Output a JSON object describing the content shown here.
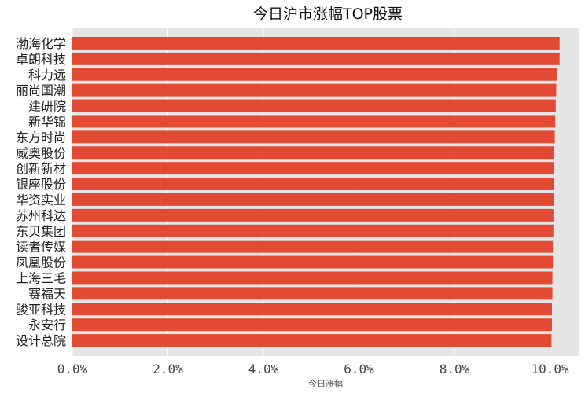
{
  "chart_data": {
    "type": "bar",
    "orientation": "horizontal",
    "title": "今日沪市涨幅TOP股票",
    "xlabel": "今日涨幅",
    "ylabel": "",
    "xlim": [
      0,
      10.6
    ],
    "x_ticks": [
      0,
      2,
      4,
      6,
      8,
      10
    ],
    "x_tick_labels": [
      "0.0%",
      "2.0%",
      "4.0%",
      "6.0%",
      "8.0%",
      "10.0%"
    ],
    "categories": [
      "渤海化学",
      "卓朗科技",
      "科力远",
      "丽尚国潮",
      "建研院",
      "新华锦",
      "东方时尚",
      "威奥股份",
      "创新新材",
      "银座股份",
      "华资实业",
      "苏州科达",
      "东贝集团",
      "读者传媒",
      "凤凰股份",
      "上海三毛",
      "赛福天",
      "骏亚科技",
      "永安行",
      "设计总院"
    ],
    "values": [
      10.2,
      10.2,
      10.14,
      10.13,
      10.12,
      10.11,
      10.1,
      10.09,
      10.09,
      10.08,
      10.08,
      10.07,
      10.07,
      10.06,
      10.06,
      10.05,
      10.05,
      10.04,
      10.04,
      10.03
    ],
    "bar_color": "#e24a33",
    "background_color": "#e5e5e5",
    "grid_color": "#ffffff",
    "grid": true,
    "legend": "none"
  }
}
